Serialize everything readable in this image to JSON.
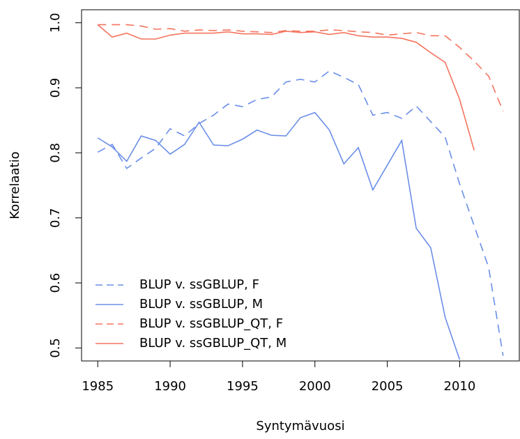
{
  "chart_data": {
    "type": "line",
    "x_label": "Syntymävuosi",
    "y_label": "Korrelaatio",
    "x": [
      1985,
      1986,
      1987,
      1988,
      1989,
      1990,
      1991,
      1992,
      1993,
      1994,
      1995,
      1996,
      1997,
      1998,
      1999,
      2000,
      2001,
      2002,
      2003,
      2004,
      2005,
      2006,
      2007,
      2008,
      2009,
      2010,
      2011,
      2012,
      2013
    ],
    "series": [
      {
        "name": "BLUP v. ssGBLUP, F",
        "color": "#6a8ee8",
        "linestyle": "dashed",
        "values": [
          0.801,
          0.813,
          0.776,
          0.792,
          0.807,
          0.837,
          0.826,
          0.845,
          0.858,
          0.875,
          0.871,
          0.882,
          0.886,
          0.909,
          0.913,
          0.909,
          0.926,
          0.916,
          0.905,
          0.858,
          0.862,
          0.853,
          0.872,
          0.848,
          0.824,
          0.752,
          0.688,
          0.624,
          0.488
        ]
      },
      {
        "name": "BLUP v. ssGBLUP, M",
        "color": "#6a8ee8",
        "linestyle": "solid",
        "values": [
          0.823,
          0.809,
          0.787,
          0.826,
          0.819,
          0.798,
          0.813,
          0.847,
          0.812,
          0.811,
          0.821,
          0.835,
          0.827,
          0.826,
          0.854,
          0.862,
          0.835,
          0.783,
          0.808,
          0.743,
          0.781,
          0.819,
          0.684,
          0.654,
          0.547,
          0.482,
          null,
          null,
          null
        ]
      },
      {
        "name": "BLUP v. ssGBLUP_QT, F",
        "color": "#f4745e",
        "linestyle": "dashed",
        "values": [
          0.997,
          0.997,
          0.997,
          0.995,
          0.99,
          0.991,
          0.987,
          0.989,
          0.988,
          0.989,
          0.987,
          0.986,
          0.985,
          0.988,
          0.987,
          0.987,
          0.989,
          0.988,
          0.986,
          0.985,
          0.981,
          0.983,
          0.985,
          0.98,
          0.98,
          0.962,
          0.941,
          0.918,
          0.864
        ]
      },
      {
        "name": "BLUP v. ssGBLUP_QT, M",
        "color": "#f4745e",
        "linestyle": "solid",
        "values": [
          0.997,
          0.978,
          0.984,
          0.975,
          0.975,
          0.981,
          0.984,
          0.984,
          0.984,
          0.986,
          0.983,
          0.983,
          0.982,
          0.987,
          0.985,
          0.986,
          0.982,
          0.985,
          0.98,
          0.978,
          0.978,
          0.976,
          0.97,
          0.954,
          0.939,
          0.882,
          0.804,
          null,
          null
        ]
      }
    ],
    "xlim": [
      1983.88,
      2014.12
    ],
    "xticks": [
      1985,
      1990,
      1995,
      2000,
      2005,
      2010
    ],
    "ylim": [
      0.48,
      1.02
    ],
    "yticks": [
      {
        "value": 0.5,
        "label": "0.5"
      },
      0.6,
      0.7,
      0.8,
      0.9,
      {
        "value": 1,
        "label": "1.0"
      }
    ],
    "legend": "bottom-left",
    "grid": false
  }
}
